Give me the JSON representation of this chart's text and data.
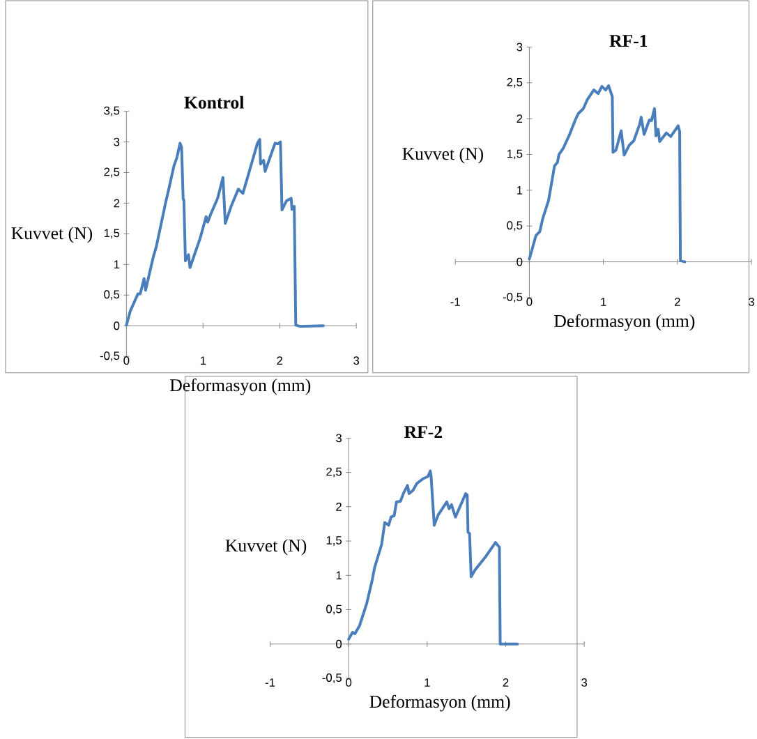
{
  "chart_data": [
    {
      "type": "line",
      "title": "Kontrol",
      "xlabel": "Deformasyon (mm)",
      "ylabel": "Kuvvet (N)",
      "color": "#4a7ebb",
      "x": [
        0,
        0.05,
        0.15,
        0.18,
        0.23,
        0.25,
        0.35,
        0.39,
        0.51,
        0.56,
        0.62,
        0.66,
        0.7,
        0.72,
        0.74,
        0.75,
        0.77,
        0.81,
        0.83,
        0.96,
        1.04,
        1.06,
        1.1,
        1.19,
        1.26,
        1.29,
        1.37,
        1.46,
        1.52,
        1.59,
        1.71,
        1.74,
        1.75,
        1.79,
        1.81,
        1.94,
        1.98,
        2.01,
        2.03,
        2.09,
        2.15,
        2.16,
        2.19,
        2.21,
        2.27,
        2.57
      ],
      "values": [
        0.01,
        0.24,
        0.52,
        0.52,
        0.77,
        0.58,
        1.12,
        1.29,
        2.0,
        2.27,
        2.61,
        2.75,
        2.98,
        2.91,
        2.08,
        2.04,
        1.06,
        1.16,
        0.95,
        1.42,
        1.78,
        1.69,
        1.82,
        2.08,
        2.42,
        1.67,
        1.96,
        2.23,
        2.16,
        2.46,
        2.98,
        3.04,
        2.64,
        2.7,
        2.52,
        2.98,
        2.97,
        3.0,
        1.89,
        2.04,
        2.08,
        1.9,
        1.95,
        0.01,
        -0.01,
        0
      ],
      "xlim": [
        0,
        3
      ],
      "ylim": [
        -0.5,
        3.5
      ],
      "xticks": [
        0,
        1,
        2,
        3
      ],
      "yticks": [
        {
          "value": -0.5,
          "label": "-0,5"
        },
        0,
        {
          "value": 0.5,
          "label": "0,5"
        },
        1,
        {
          "value": 1.5,
          "label": "1,5"
        },
        2,
        {
          "value": 2.5,
          "label": "2,5"
        },
        3,
        {
          "value": 3.5,
          "label": "3,5"
        }
      ]
    },
    {
      "type": "line",
      "title": "RF-1",
      "xlabel": "Deformasyon (mm)",
      "ylabel": "Kuvvet (N)",
      "color": "#4a7ebb",
      "x": [
        0,
        0.09,
        0.14,
        0.18,
        0.26,
        0.34,
        0.38,
        0.4,
        0.46,
        0.54,
        0.62,
        0.66,
        0.73,
        0.78,
        0.87,
        0.93,
        0.98,
        1.03,
        1.07,
        1.12,
        1.13,
        1.17,
        1.24,
        1.28,
        1.35,
        1.41,
        1.49,
        1.51,
        1.55,
        1.62,
        1.65,
        1.69,
        1.71,
        1.74,
        1.76,
        1.85,
        1.91,
        2.01,
        2.03,
        2.04,
        2.1
      ],
      "values": [
        0.04,
        0.37,
        0.42,
        0.6,
        0.86,
        1.34,
        1.39,
        1.5,
        1.59,
        1.77,
        1.98,
        2.07,
        2.14,
        2.26,
        2.4,
        2.35,
        2.45,
        2.4,
        2.46,
        2.31,
        1.53,
        1.56,
        1.83,
        1.49,
        1.63,
        1.69,
        1.92,
        2.02,
        1.78,
        1.98,
        1.97,
        2.14,
        1.76,
        1.85,
        1.68,
        1.8,
        1.75,
        1.9,
        1.82,
        0.02,
        0
      ],
      "xlim": [
        -1,
        3
      ],
      "ylim": [
        -0.5,
        3
      ],
      "xticks": [
        -1,
        0,
        1,
        2,
        3
      ],
      "yticks": [
        {
          "value": -0.5,
          "label": "-0,5"
        },
        0,
        {
          "value": 0.5,
          "label": "0,5"
        },
        1,
        {
          "value": 1.5,
          "label": "1,5"
        },
        2,
        {
          "value": 2.5,
          "label": "2,5"
        },
        3
      ]
    },
    {
      "type": "line",
      "title": "RF-2",
      "xlabel": "Deformasyon (mm)",
      "ylabel": "Kuvvet (N)",
      "color": "#4a7ebb",
      "x": [
        0,
        0.05,
        0.08,
        0.14,
        0.23,
        0.3,
        0.33,
        0.42,
        0.46,
        0.51,
        0.54,
        0.58,
        0.61,
        0.66,
        0.7,
        0.75,
        0.77,
        0.82,
        0.87,
        0.95,
        1.01,
        1.04,
        1.05,
        1.09,
        1.14,
        1.25,
        1.28,
        1.31,
        1.36,
        1.49,
        1.51,
        1.52,
        1.54,
        1.56,
        1.61,
        1.75,
        1.87,
        1.92,
        1.93,
        2.15
      ],
      "values": [
        0.07,
        0.17,
        0.15,
        0.27,
        0.59,
        0.93,
        1.11,
        1.45,
        1.77,
        1.73,
        1.85,
        1.87,
        2.07,
        2.08,
        2.2,
        2.31,
        2.19,
        2.24,
        2.34,
        2.41,
        2.44,
        2.52,
        2.44,
        1.73,
        1.88,
        2.07,
        1.97,
        2.03,
        1.85,
        2.19,
        2.17,
        1.63,
        1.61,
        0.98,
        1.08,
        1.28,
        1.48,
        1.41,
        0,
        0
      ],
      "xlim": [
        -1,
        3
      ],
      "ylim": [
        -0.5,
        3
      ],
      "xticks": [
        -1,
        0,
        1,
        2,
        3
      ],
      "yticks": [
        {
          "value": -0.5,
          "label": "-0,5"
        },
        0,
        {
          "value": 0.5,
          "label": "0,5"
        },
        1,
        {
          "value": 1.5,
          "label": "1,5"
        },
        2,
        {
          "value": 2.5,
          "label": "2,5"
        },
        3
      ]
    }
  ]
}
